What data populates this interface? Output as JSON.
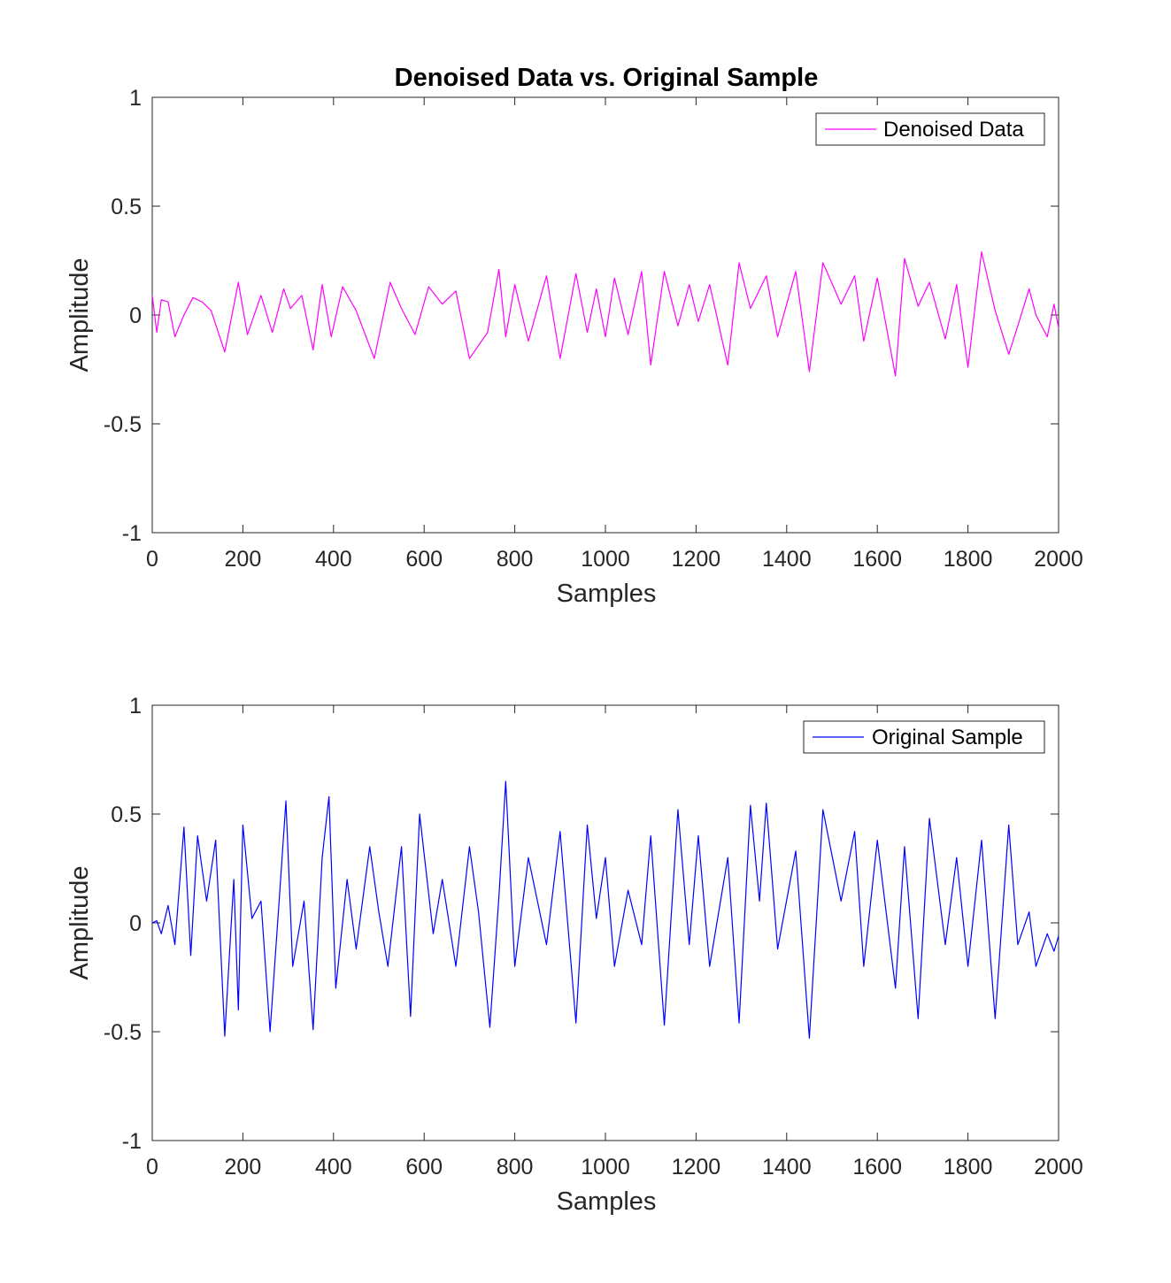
{
  "chart_data": [
    {
      "type": "line",
      "title": "Denoised Data vs. Original Sample",
      "xlabel": "Samples",
      "ylabel": "Amplitude",
      "xlim": [
        0,
        2000
      ],
      "ylim": [
        -1,
        1
      ],
      "xticks": [
        0,
        200,
        400,
        600,
        800,
        1000,
        1200,
        1400,
        1600,
        1800,
        2000
      ],
      "xtick_labels": [
        "0",
        "200",
        "400",
        "600",
        "800",
        "1000",
        "1200",
        "1400",
        "1600",
        "1800",
        "2000"
      ],
      "yticks": [
        1,
        0.5,
        0,
        -0.5,
        -1
      ],
      "ytick_labels": [
        "1",
        "0.5",
        "0",
        "-0.5",
        "-1"
      ],
      "legend_position": "top-right",
      "series": [
        {
          "name": "Denoised Data",
          "color": "#ff00ff",
          "x": [
            0,
            10,
            20,
            35,
            50,
            70,
            90,
            110,
            130,
            160,
            190,
            210,
            240,
            265,
            290,
            305,
            330,
            355,
            375,
            395,
            420,
            450,
            490,
            525,
            550,
            580,
            610,
            640,
            670,
            700,
            740,
            765,
            780,
            800,
            830,
            870,
            900,
            935,
            960,
            980,
            1000,
            1020,
            1050,
            1080,
            1100,
            1130,
            1160,
            1185,
            1205,
            1230,
            1270,
            1295,
            1320,
            1355,
            1380,
            1420,
            1450,
            1480,
            1520,
            1550,
            1570,
            1600,
            1640,
            1660,
            1690,
            1715,
            1750,
            1775,
            1800,
            1830,
            1860,
            1890,
            1910,
            1935,
            1950,
            1975,
            1990,
            2000
          ],
          "values": [
            0.09,
            -0.08,
            0.07,
            0.06,
            -0.1,
            0.0,
            0.08,
            0.06,
            0.02,
            -0.17,
            0.15,
            -0.09,
            0.09,
            -0.08,
            0.12,
            0.03,
            0.09,
            -0.16,
            0.14,
            -0.1,
            0.13,
            0.02,
            -0.2,
            0.15,
            0.03,
            -0.09,
            0.13,
            0.05,
            0.11,
            -0.2,
            -0.08,
            0.21,
            -0.1,
            0.14,
            -0.12,
            0.18,
            -0.2,
            0.19,
            -0.08,
            0.12,
            -0.1,
            0.17,
            -0.09,
            0.2,
            -0.23,
            0.2,
            -0.05,
            0.14,
            -0.03,
            0.14,
            -0.23,
            0.24,
            0.03,
            0.18,
            -0.1,
            0.2,
            -0.26,
            0.24,
            0.05,
            0.18,
            -0.12,
            0.17,
            -0.28,
            0.26,
            0.04,
            0.15,
            -0.11,
            0.14,
            -0.24,
            0.29,
            0.02,
            -0.18,
            -0.05,
            0.12,
            0.0,
            -0.1,
            0.05,
            -0.06
          ]
        }
      ]
    },
    {
      "type": "line",
      "title": "",
      "xlabel": "Samples",
      "ylabel": "Amplitude",
      "xlim": [
        0,
        2000
      ],
      "ylim": [
        -1,
        1
      ],
      "xticks": [
        0,
        200,
        400,
        600,
        800,
        1000,
        1200,
        1400,
        1600,
        1800,
        2000
      ],
      "xtick_labels": [
        "0",
        "200",
        "400",
        "600",
        "800",
        "1000",
        "1200",
        "1400",
        "1600",
        "1800",
        "2000"
      ],
      "yticks": [
        1,
        0.5,
        0,
        -0.5,
        -1
      ],
      "ytick_labels": [
        "1",
        "0.5",
        "0",
        "-0.5",
        "-1"
      ],
      "legend_position": "top-right",
      "series": [
        {
          "name": "Original Sample",
          "color": "#0000ff",
          "x": [
            0,
            10,
            20,
            35,
            50,
            70,
            85,
            100,
            120,
            140,
            160,
            180,
            190,
            200,
            220,
            240,
            260,
            280,
            295,
            310,
            335,
            355,
            375,
            390,
            405,
            430,
            450,
            480,
            500,
            520,
            550,
            570,
            590,
            620,
            640,
            670,
            700,
            720,
            745,
            765,
            780,
            800,
            830,
            870,
            900,
            935,
            960,
            980,
            1000,
            1020,
            1050,
            1080,
            1100,
            1130,
            1160,
            1185,
            1205,
            1230,
            1270,
            1295,
            1320,
            1340,
            1355,
            1380,
            1420,
            1450,
            1480,
            1520,
            1550,
            1570,
            1600,
            1640,
            1660,
            1690,
            1715,
            1750,
            1775,
            1800,
            1830,
            1860,
            1890,
            1910,
            1935,
            1950,
            1975,
            1990,
            2000
          ],
          "values": [
            0.0,
            0.01,
            -0.05,
            0.08,
            -0.1,
            0.44,
            -0.15,
            0.4,
            0.1,
            0.38,
            -0.52,
            0.2,
            -0.4,
            0.45,
            0.02,
            0.1,
            -0.5,
            0.1,
            0.56,
            -0.2,
            0.1,
            -0.49,
            0.3,
            0.58,
            -0.3,
            0.2,
            -0.12,
            0.35,
            0.05,
            -0.2,
            0.35,
            -0.43,
            0.5,
            -0.05,
            0.2,
            -0.2,
            0.35,
            0.05,
            -0.48,
            0.12,
            0.65,
            -0.2,
            0.3,
            -0.1,
            0.42,
            -0.46,
            0.45,
            0.02,
            0.3,
            -0.2,
            0.15,
            -0.1,
            0.4,
            -0.47,
            0.52,
            -0.1,
            0.4,
            -0.2,
            0.3,
            -0.46,
            0.54,
            0.1,
            0.55,
            -0.12,
            0.33,
            -0.53,
            0.52,
            0.1,
            0.42,
            -0.2,
            0.38,
            -0.3,
            0.35,
            -0.44,
            0.48,
            -0.1,
            0.3,
            -0.2,
            0.38,
            -0.44,
            0.45,
            -0.1,
            0.05,
            -0.2,
            -0.05,
            -0.13,
            -0.06
          ]
        }
      ]
    }
  ]
}
